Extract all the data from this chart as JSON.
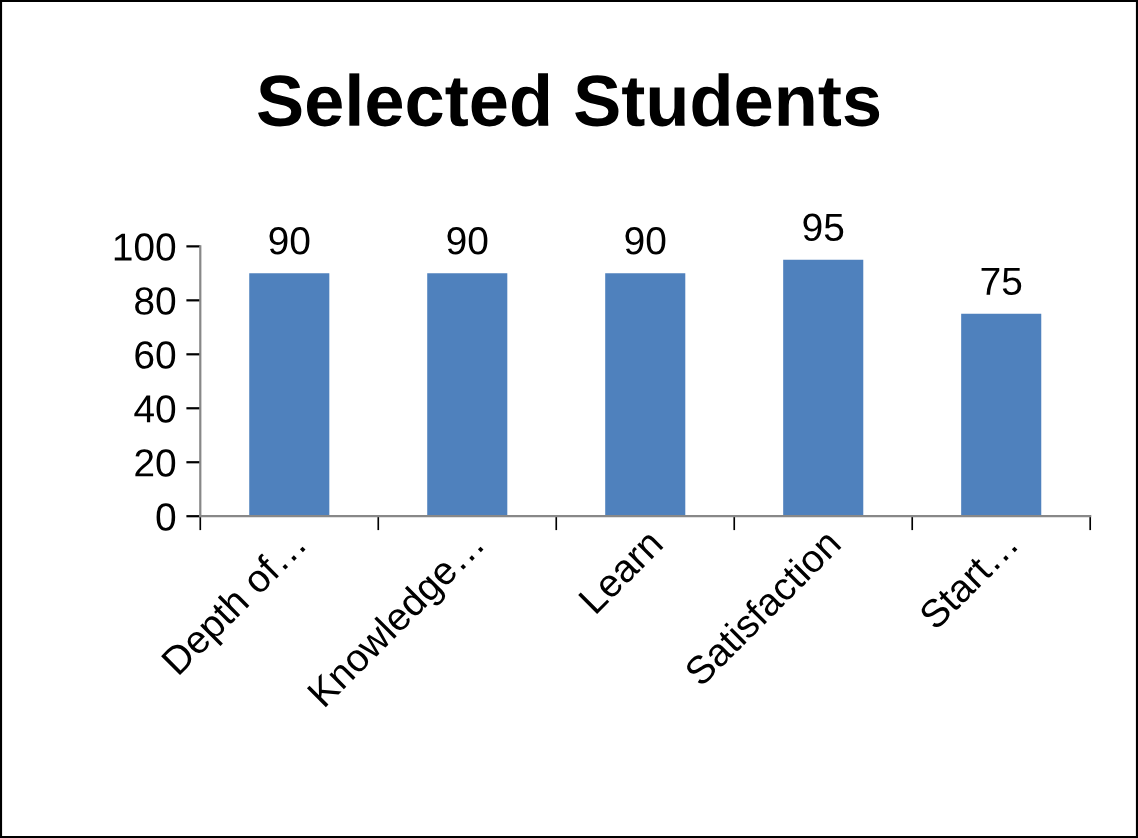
{
  "chart_data": {
    "type": "bar",
    "title": "Selected Students",
    "categories": [
      "Depth of…",
      "Knowledge…",
      "Learn",
      "Satisfaction",
      "Start…"
    ],
    "values": [
      90,
      90,
      90,
      95,
      75
    ],
    "color": "#4f81bd",
    "ylim": [
      0,
      100
    ],
    "yticks": [
      0,
      20,
      40,
      60,
      80,
      100
    ],
    "grid": false,
    "data_labels": true
  }
}
